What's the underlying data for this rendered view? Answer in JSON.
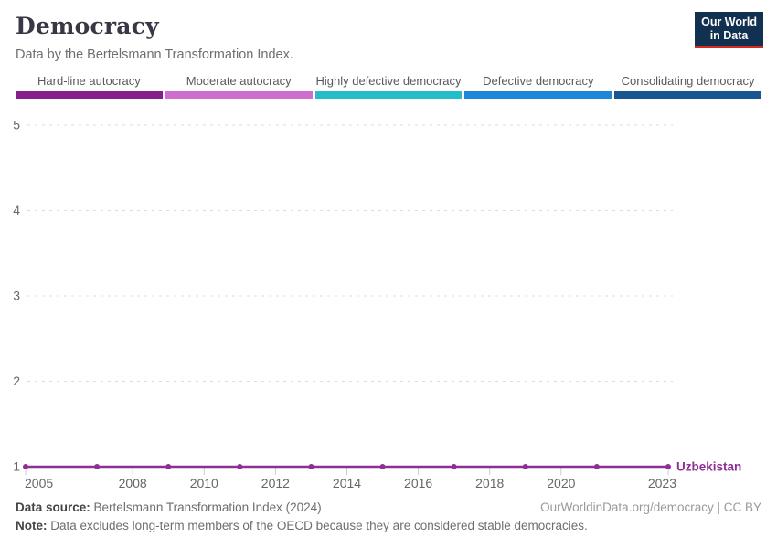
{
  "header": {
    "title": "Democracy",
    "subtitle": "Data by the Bertelsmann Transformation Index."
  },
  "logo": {
    "line1": "Our World",
    "line2": "in Data",
    "bg_color": "#12304f",
    "accent_color": "#d42b21"
  },
  "legend": {
    "items": [
      {
        "label": "Hard-line autocracy",
        "color": "#861e8b"
      },
      {
        "label": "Moderate autocracy",
        "color": "#d06ed0"
      },
      {
        "label": "Highly defective democracy",
        "color": "#25bec8"
      },
      {
        "label": "Defective democracy",
        "color": "#1f87d8"
      },
      {
        "label": "Consolidating democracy",
        "color": "#1a5791"
      }
    ]
  },
  "chart_data": {
    "type": "line",
    "x": [
      2005,
      2007,
      2009,
      2011,
      2013,
      2015,
      2017,
      2019,
      2021,
      2023
    ],
    "series": [
      {
        "name": "Uzbekistan",
        "values": [
          1,
          1,
          1,
          1,
          1,
          1,
          1,
          1,
          1,
          1
        ],
        "color": "#8e2f96"
      }
    ],
    "title": "Democracy",
    "xlabel": "",
    "ylabel": "",
    "xlim": [
      2005,
      2023
    ],
    "ylim": [
      1,
      5
    ],
    "yticks": [
      1,
      2,
      3,
      4,
      5
    ],
    "xtick_labels": [
      2005,
      2008,
      2010,
      2012,
      2014,
      2016,
      2018,
      2020,
      2023
    ],
    "grid": "horizontal-dashed",
    "grid_color": "#dcdcdc",
    "axis_text_color": "#666666",
    "legend_position": "end-of-line-label"
  },
  "footer": {
    "source_label": "Data source:",
    "source_text": "Bertelsmann Transformation Index (2024)",
    "right_text": "OurWorldinData.org/democracy | CC BY",
    "note_label": "Note:",
    "note_text": "Data excludes long-term members of the OECD because they are considered stable democracies."
  }
}
